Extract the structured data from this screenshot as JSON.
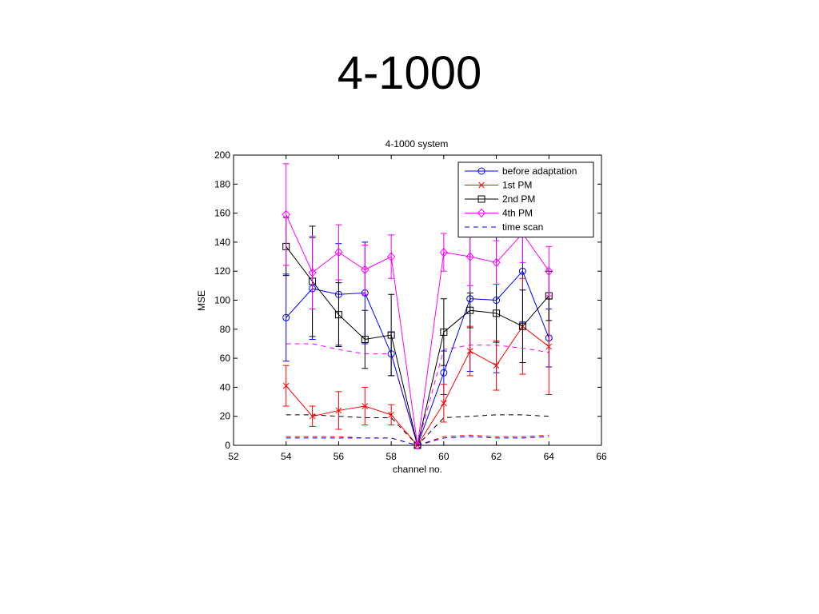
{
  "slide": {
    "title": "4-1000"
  },
  "chart_data": {
    "type": "line",
    "title": "4-1000 system",
    "xlabel": "channel no.",
    "ylabel": "MSE",
    "xlim": [
      52,
      66
    ],
    "ylim": [
      0,
      200
    ],
    "xticks": [
      52,
      54,
      56,
      58,
      60,
      62,
      64,
      66
    ],
    "yticks": [
      0,
      20,
      40,
      60,
      80,
      100,
      120,
      140,
      160,
      180,
      200
    ],
    "grid": false,
    "legend_position": "top-right",
    "series": [
      {
        "name": "before adaptation",
        "color": "#0000ff",
        "marker": "circle",
        "line": "solid",
        "x": [
          54,
          55,
          56,
          57,
          58,
          59,
          60,
          61,
          62,
          63,
          64
        ],
        "y": [
          88,
          108,
          104,
          105,
          63,
          0,
          50,
          101,
          100,
          120,
          74
        ],
        "err": [
          30,
          35,
          35,
          35,
          15,
          0,
          15,
          50,
          50,
          35,
          20
        ]
      },
      {
        "name": "1st PM",
        "color": "#ff0000",
        "marker": "x",
        "line": "solid",
        "x": [
          54,
          55,
          56,
          57,
          58,
          59,
          60,
          61,
          62,
          63,
          64
        ],
        "y": [
          41,
          20,
          24,
          27,
          21,
          0,
          29,
          65,
          55,
          82,
          68
        ],
        "err": [
          14,
          7,
          13,
          13,
          7,
          0,
          13,
          17,
          17,
          33,
          33
        ]
      },
      {
        "name": "2nd PM",
        "color": "#000000",
        "marker": "square",
        "line": "solid",
        "x": [
          54,
          55,
          56,
          57,
          58,
          59,
          60,
          61,
          62,
          63,
          64
        ],
        "y": [
          137,
          113,
          90,
          73,
          76,
          0,
          78,
          93,
          91,
          82,
          103
        ],
        "err": [
          20,
          38,
          22,
          20,
          28,
          0,
          23,
          12,
          20,
          25,
          17
        ]
      },
      {
        "name": "4th PM",
        "color": "#ff00ff",
        "marker": "diamond",
        "line": "solid",
        "x": [
          54,
          55,
          56,
          57,
          58,
          59,
          60,
          61,
          62,
          63,
          64
        ],
        "y": [
          159,
          119,
          133,
          121,
          130,
          0,
          133,
          130,
          126,
          146,
          120
        ],
        "err": [
          35,
          25,
          19,
          17,
          15,
          0,
          13,
          20,
          15,
          20,
          17
        ]
      },
      {
        "name": "time scan",
        "color": "#0000ff",
        "marker": "none",
        "line": "dashed",
        "x": [
          54,
          55,
          56,
          57,
          58,
          59,
          60,
          61,
          62,
          63,
          64
        ],
        "y": [
          5,
          5,
          5,
          5,
          5,
          0,
          5,
          6,
          5,
          5,
          6
        ]
      }
    ],
    "extra_dashed_lines": [
      {
        "color": "#ff00ff",
        "x": [
          54,
          55,
          56,
          57,
          58,
          59,
          60,
          61,
          62,
          63,
          64
        ],
        "y": [
          70,
          70,
          66,
          63,
          63,
          0,
          66,
          69,
          69,
          67,
          64
        ]
      },
      {
        "color": "#000000",
        "x": [
          54,
          55,
          56,
          57,
          58,
          59,
          60,
          61,
          62,
          63,
          64
        ],
        "y": [
          21,
          21,
          20,
          19,
          19,
          0,
          19,
          20,
          21,
          21,
          20
        ]
      },
      {
        "color": "#ff0000",
        "x": [
          54,
          55,
          56,
          57,
          58,
          59,
          60,
          61,
          62,
          63,
          64
        ],
        "y": [
          6,
          6,
          6,
          5,
          5,
          0,
          6,
          7,
          6,
          6,
          7
        ]
      }
    ]
  }
}
